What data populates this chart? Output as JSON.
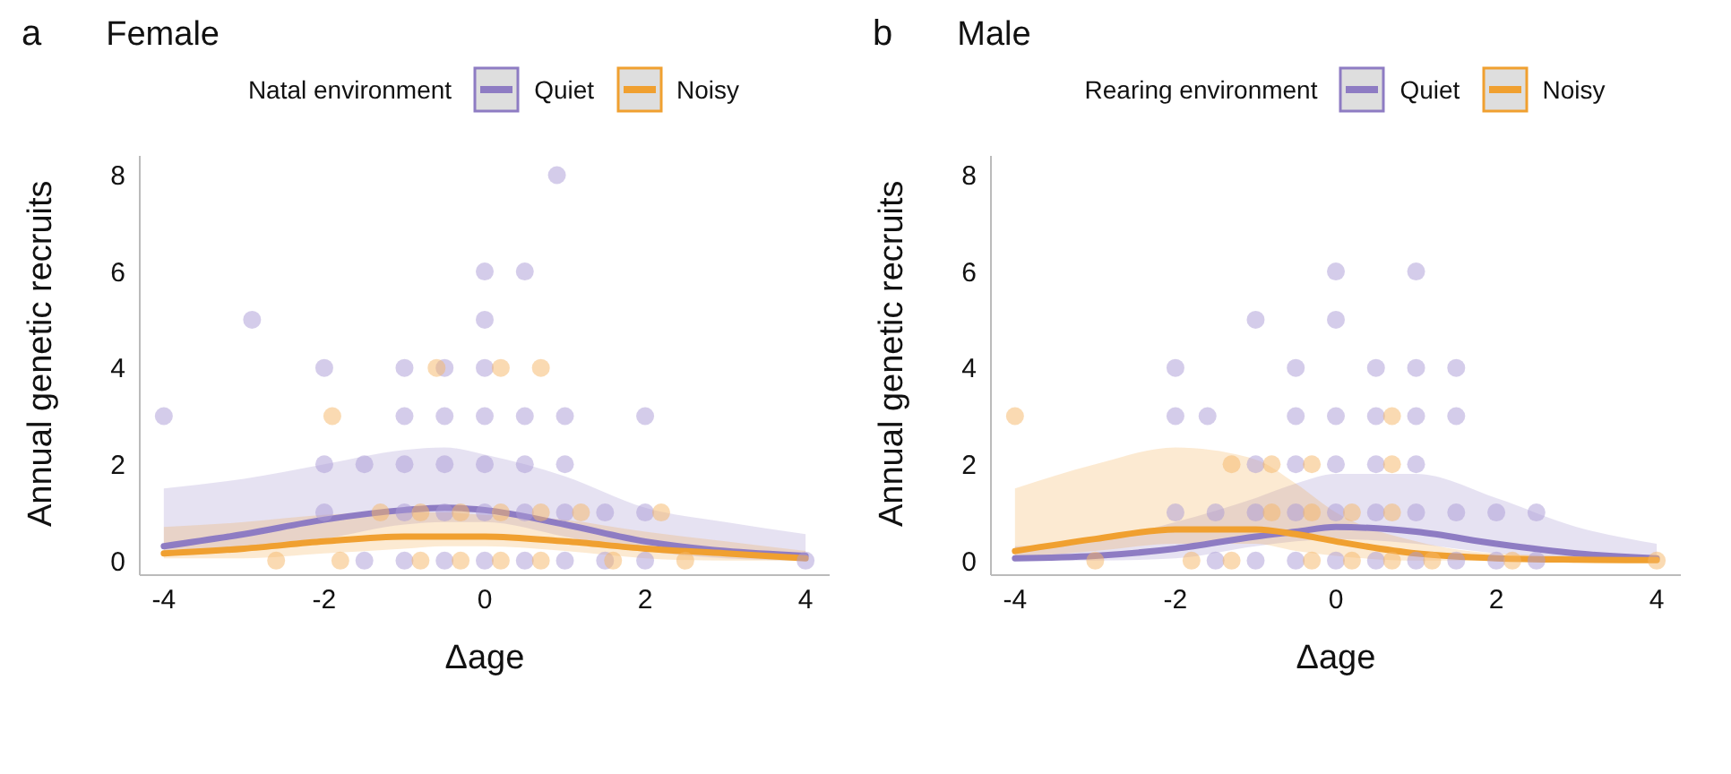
{
  "chart_data": [
    {
      "type": "scatter",
      "title": "Female",
      "annotations": [
        "a"
      ],
      "xlabel": "Δage",
      "ylabel": "Annual genetic recruits",
      "legend_title": "Natal environment",
      "legend": "top",
      "xlim": [
        -4.3,
        4.3
      ],
      "xticks": [
        -4,
        -2,
        0,
        2,
        4
      ],
      "ylim": [
        -0.3,
        8.4
      ],
      "yticks": [
        0,
        2,
        4,
        6,
        8
      ],
      "series": [
        {
          "type": "line",
          "name": "Quiet",
          "color": "#8e7cc3",
          "x": [
            -4,
            -3,
            -2,
            -1,
            -0.5,
            0,
            1,
            2,
            3,
            4
          ],
          "values": [
            0.3,
            0.55,
            0.85,
            1.05,
            1.1,
            1.05,
            0.75,
            0.4,
            0.2,
            0.1
          ],
          "lower": [
            0.1,
            0.2,
            0.45,
            0.75,
            0.8,
            0.8,
            0.5,
            0.2,
            0.05,
            0
          ],
          "upper": [
            1.5,
            1.7,
            2.0,
            2.3,
            2.35,
            2.2,
            1.75,
            1.1,
            0.8,
            0.55
          ]
        },
        {
          "type": "line",
          "name": "Noisy",
          "color": "#f0a030",
          "x": [
            -4,
            -3,
            -2,
            -1,
            -0.5,
            0,
            1,
            2,
            3,
            4
          ],
          "values": [
            0.15,
            0.25,
            0.4,
            0.5,
            0.5,
            0.5,
            0.4,
            0.25,
            0.15,
            0.05
          ],
          "lower": [
            0.05,
            0.05,
            0.15,
            0.25,
            0.3,
            0.3,
            0.2,
            0.05,
            0,
            0
          ],
          "upper": [
            0.7,
            0.8,
            0.95,
            1.0,
            1.0,
            0.95,
            0.85,
            0.6,
            0.4,
            0.2
          ]
        },
        {
          "color": "#a99ad6",
          "x": [
            -4,
            -2.9,
            -2,
            -2,
            -2,
            -1.5,
            -1.5,
            -1,
            -1,
            -1,
            -1,
            -1,
            -0.5,
            -0.5,
            -0.5,
            -0.5,
            -0.5,
            0,
            0,
            0,
            0,
            0,
            0,
            0,
            0.5,
            0.5,
            0.5,
            0.5,
            0.5,
            0.9,
            1,
            1,
            1,
            1,
            1.5,
            1.5,
            2,
            2,
            2,
            4
          ],
          "values": [
            3,
            5,
            4,
            2,
            1,
            2,
            0,
            4,
            3,
            2,
            1,
            0,
            4,
            3,
            2,
            1,
            0,
            6,
            5,
            4,
            3,
            2,
            1,
            0,
            6,
            3,
            2,
            1,
            0,
            8,
            3,
            2,
            1,
            0,
            1,
            0,
            3,
            1,
            0,
            0
          ]
        },
        {
          "color": "#f5b565",
          "x": [
            -2.6,
            -1.8,
            -1.9,
            -1.3,
            -0.8,
            -0.8,
            -0.6,
            -0.3,
            -0.3,
            0.2,
            0.2,
            0.2,
            0.7,
            0.7,
            0.7,
            1.2,
            1.6,
            2.2,
            2.5
          ],
          "values": [
            0,
            0,
            3,
            1,
            1,
            0,
            4,
            1,
            0,
            4,
            1,
            0,
            4,
            1,
            0,
            1,
            0,
            1,
            0
          ]
        }
      ]
    },
    {
      "type": "scatter",
      "title": "Male",
      "annotations": [
        "b"
      ],
      "xlabel": "Δage",
      "ylabel": "Annual genetic recruits",
      "legend_title": "Rearing environment",
      "legend": "top",
      "xlim": [
        -4.3,
        4.3
      ],
      "xticks": [
        -4,
        -2,
        0,
        2,
        4
      ],
      "ylim": [
        -0.3,
        8.4
      ],
      "yticks": [
        0,
        2,
        4,
        6,
        8
      ],
      "series": [
        {
          "type": "line",
          "name": "Quiet",
          "color": "#8e7cc3",
          "x": [
            -4,
            -3,
            -2,
            -1,
            -0.5,
            0,
            1,
            2,
            3,
            4
          ],
          "values": [
            0.05,
            0.1,
            0.25,
            0.5,
            0.6,
            0.7,
            0.6,
            0.35,
            0.15,
            0.05
          ],
          "lower": [
            0,
            0,
            0.05,
            0.3,
            0.4,
            0.45,
            0.35,
            0.15,
            0.05,
            0
          ],
          "upper": [
            0.3,
            0.4,
            0.8,
            1.3,
            1.6,
            1.8,
            1.8,
            1.3,
            0.7,
            0.35
          ]
        },
        {
          "type": "line",
          "name": "Noisy",
          "color": "#f0a030",
          "x": [
            -4,
            -3,
            -2,
            -1,
            -0.5,
            0,
            1,
            2,
            3,
            4
          ],
          "values": [
            0.2,
            0.45,
            0.65,
            0.65,
            0.55,
            0.4,
            0.15,
            0.05,
            0.02,
            0.01
          ],
          "lower": [
            0.05,
            0.2,
            0.35,
            0.35,
            0.2,
            0.1,
            0,
            0,
            0,
            0
          ],
          "upper": [
            1.5,
            2.0,
            2.35,
            2.1,
            1.6,
            1.0,
            0.4,
            0.15,
            0.1,
            0.05
          ]
        },
        {
          "color": "#a99ad6",
          "x": [
            -2,
            -2,
            -2,
            -1.6,
            -1.5,
            -1.5,
            -1,
            -1,
            -1,
            -1,
            -0.5,
            -0.5,
            -0.5,
            -0.5,
            -0.5,
            0,
            0,
            0,
            0,
            0,
            0,
            0.5,
            0.5,
            0.5,
            0.5,
            0.5,
            1,
            1,
            1,
            1,
            1,
            1,
            1.5,
            1.5,
            1.5,
            1.5,
            2,
            2,
            2.5,
            2.5
          ],
          "values": [
            4,
            3,
            1,
            3,
            1,
            0,
            5,
            2,
            1,
            0,
            4,
            3,
            2,
            1,
            0,
            6,
            5,
            3,
            2,
            1,
            0,
            4,
            3,
            2,
            1,
            0,
            6,
            4,
            3,
            2,
            1,
            0,
            4,
            3,
            1,
            0,
            1,
            0,
            1,
            0
          ]
        },
        {
          "color": "#f5b565",
          "x": [
            -4,
            -3,
            -1.8,
            -1.3,
            -1.3,
            -0.8,
            -0.8,
            -0.3,
            -0.3,
            -0.3,
            0.2,
            0.2,
            0.7,
            0.7,
            0.7,
            0.7,
            1.2,
            2.2,
            4
          ],
          "values": [
            3,
            0,
            0,
            2,
            0,
            2,
            1,
            2,
            1,
            0,
            1,
            0,
            3,
            2,
            1,
            0,
            0,
            0,
            0
          ]
        }
      ]
    }
  ]
}
